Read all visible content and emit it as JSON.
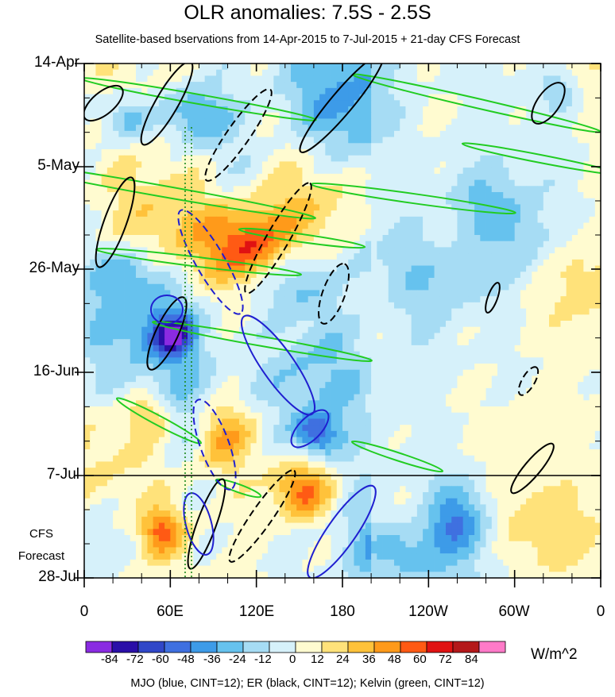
{
  "chart_data": {
    "type": "heatmap",
    "title": "OLR anomalies: 7.5S - 2.5S",
    "subtitle": "Satellite-based bservations from 14-Apr-2015 to 7-Jul-2015 + 21-day CFS Forecast",
    "y_ticks": [
      "14-Apr",
      "5-May",
      "26-May",
      "16-Jun",
      "7-Jul",
      "28-Jul"
    ],
    "x_ticks": [
      "0",
      "60E",
      "120E",
      "180",
      "120W",
      "60W",
      "0"
    ],
    "x_range": [
      0,
      360
    ],
    "forecast_start": "7-Jul",
    "forecast_label_1": "CFS",
    "forecast_label_2": "Forecast",
    "colorbar": {
      "labels": [
        "-84",
        "-72",
        "-60",
        "-48",
        "-36",
        "-24",
        "-12",
        "0",
        "12",
        "24",
        "36",
        "48",
        "60",
        "72",
        "84"
      ],
      "colors": [
        "#8a2be2",
        "#2a0fa8",
        "#3047c8",
        "#3f70e0",
        "#3d9be8",
        "#66c2ee",
        "#a6dcf4",
        "#d6f1fa",
        "#fffbd0",
        "#ffe27a",
        "#ffc23a",
        "#ff9a1a",
        "#ff5a14",
        "#e01212",
        "#b4181a",
        "#ff7ac8"
      ],
      "units": "W/m^2"
    },
    "footnote": "MJO (blue, CINT=12); ER (black, CINT=12); Kelvin (green, CINT=12)",
    "series_colors": {
      "mjo": "#1f1fd0",
      "er": "#000000",
      "kelvin": "#22cc22"
    }
  }
}
